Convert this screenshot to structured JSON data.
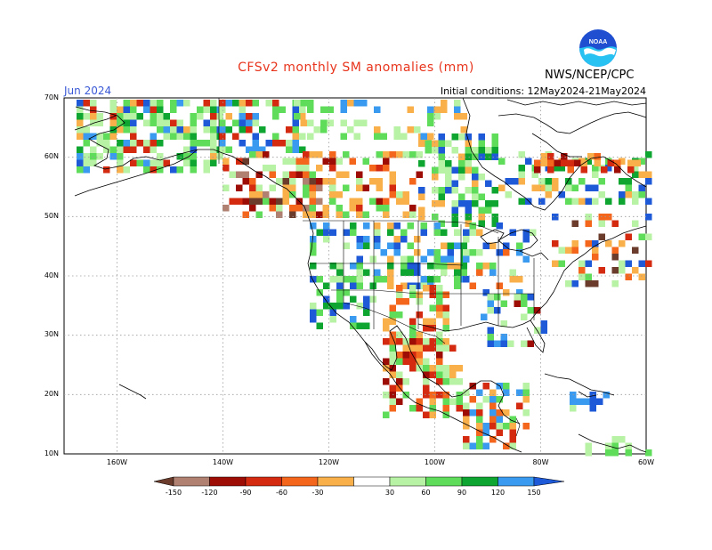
{
  "header": {
    "title": "CFSv2 monthly SM anomalies (mm)",
    "month": "Jun 2024",
    "initial_conditions": "Initial conditions: 12May2024-21May2024",
    "org": "NWS/NCEP/CPC",
    "logo_text": "NOAA"
  },
  "map": {
    "lat_labels": [
      "70N",
      "60N",
      "50N",
      "40N",
      "30N",
      "20N",
      "10N"
    ],
    "lon_labels": [
      "160W",
      "140W",
      "120W",
      "100W",
      "80W",
      "60W"
    ],
    "grid_lines": true,
    "background": "#ffffff",
    "coastline_color": "#000000"
  },
  "legend": {
    "ticks": [
      "-150",
      "-120",
      "-90",
      "-60",
      "-30",
      "30",
      "60",
      "90",
      "120",
      "150"
    ],
    "colors": [
      "#6b3c2b",
      "#b08070",
      "#9e0c06",
      "#d32a10",
      "#f4661c",
      "#f9b04a",
      "#ffffff",
      "#b8f2a4",
      "#5fdd5a",
      "#0ea630",
      "#3a9af0",
      "#1e5ad8"
    ]
  }
}
